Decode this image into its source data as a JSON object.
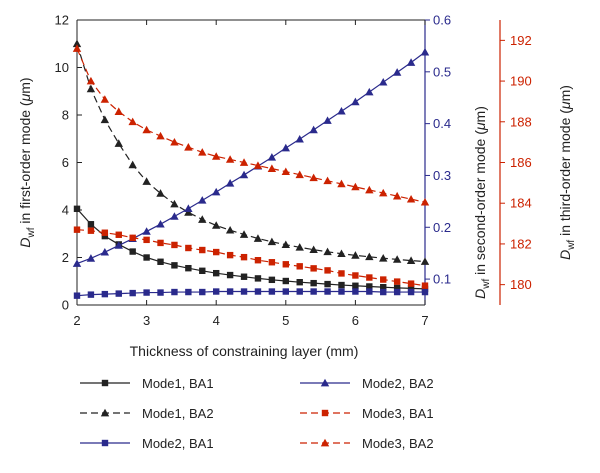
{
  "chart_data": {
    "type": "line",
    "xlabel": "Thickness of constraining layer (mm)",
    "xlim": [
      2,
      7
    ],
    "x_ticks": [
      "2",
      "3",
      "4",
      "5",
      "6",
      "7"
    ],
    "axes": {
      "left": {
        "label_main": "D",
        "label_sub": "wf",
        "label_rest": " in first-order mode (",
        "label_unit_italic": "μ",
        "label_unit_rest": "m)",
        "ylim": [
          0,
          12
        ],
        "ticks": [
          "0",
          "2",
          "4",
          "6",
          "8",
          "10",
          "12"
        ],
        "color": "#222222"
      },
      "right1": {
        "label_main": "D",
        "label_sub": "wf",
        "label_rest": " in second-order mode (",
        "label_unit_italic": "μ",
        "label_unit_rest": "m)",
        "ylim": [
          0.05,
          0.6
        ],
        "ticks": [
          "0.1",
          "0.2",
          "0.3",
          "0.4",
          "0.5",
          "0.6"
        ],
        "color": "#2a2a8c"
      },
      "right2": {
        "label_main": "D",
        "label_sub": "wf",
        "label_rest": " in third-order mode (",
        "label_unit_italic": "μ",
        "label_unit_rest": "m)",
        "ylim": [
          179,
          193
        ],
        "ticks": [
          "180",
          "182",
          "184",
          "186",
          "188",
          "190",
          "192"
        ],
        "color": "#cc2200"
      }
    },
    "x": [
      2.0,
      2.2,
      2.4,
      2.6,
      2.8,
      3.0,
      3.2,
      3.4,
      3.6,
      3.8,
      4.0,
      4.2,
      4.4,
      4.6,
      4.8,
      5.0,
      5.2,
      5.4,
      5.6,
      5.8,
      6.0,
      6.2,
      6.4,
      6.6,
      6.8,
      7.0
    ],
    "series": [
      {
        "name": "Mode1, BA1",
        "axis": "left",
        "marker": "square",
        "dash": false,
        "color": "#222222",
        "values": [
          4.05,
          3.4,
          2.9,
          2.55,
          2.25,
          2.0,
          1.82,
          1.67,
          1.55,
          1.44,
          1.34,
          1.26,
          1.19,
          1.12,
          1.06,
          1.01,
          0.96,
          0.92,
          0.88,
          0.84,
          0.81,
          0.78,
          0.75,
          0.72,
          0.7,
          0.68
        ]
      },
      {
        "name": "Mode1, BA2",
        "axis": "left",
        "marker": "triangle",
        "dash": true,
        "color": "#222222",
        "values": [
          11.0,
          9.1,
          7.8,
          6.8,
          5.9,
          5.2,
          4.7,
          4.25,
          3.9,
          3.6,
          3.35,
          3.15,
          2.97,
          2.8,
          2.66,
          2.54,
          2.43,
          2.33,
          2.24,
          2.16,
          2.09,
          2.03,
          1.97,
          1.92,
          1.87,
          1.83
        ]
      },
      {
        "name": "Mode2, BA1",
        "axis": "right1",
        "marker": "square",
        "dash": false,
        "color": "#2a2a8c",
        "values": [
          0.068,
          0.07,
          0.071,
          0.072,
          0.073,
          0.074,
          0.074,
          0.075,
          0.075,
          0.075,
          0.076,
          0.076,
          0.076,
          0.076,
          0.076,
          0.076,
          0.076,
          0.076,
          0.076,
          0.076,
          0.076,
          0.076,
          0.075,
          0.075,
          0.075,
          0.075
        ]
      },
      {
        "name": "Mode2, BA2",
        "axis": "right1",
        "marker": "triangle",
        "dash": false,
        "color": "#2a2a8c",
        "values": [
          0.13,
          0.14,
          0.152,
          0.165,
          0.178,
          0.192,
          0.206,
          0.221,
          0.236,
          0.252,
          0.268,
          0.285,
          0.301,
          0.318,
          0.335,
          0.353,
          0.37,
          0.388,
          0.406,
          0.424,
          0.442,
          0.461,
          0.48,
          0.499,
          0.518,
          0.538
        ]
      },
      {
        "name": "Mode3, BA1",
        "axis": "right2",
        "marker": "square",
        "dash": true,
        "color": "#cc2200",
        "values": [
          182.7,
          182.65,
          182.55,
          182.45,
          182.3,
          182.2,
          182.05,
          181.95,
          181.8,
          181.7,
          181.6,
          181.45,
          181.35,
          181.2,
          181.1,
          181.0,
          180.9,
          180.8,
          180.7,
          180.55,
          180.45,
          180.35,
          180.25,
          180.15,
          180.05,
          179.95
        ]
      },
      {
        "name": "Mode3, BA2",
        "axis": "right2",
        "marker": "triangle",
        "dash": true,
        "color": "#cc2200",
        "values": [
          191.6,
          190.0,
          189.1,
          188.5,
          188.0,
          187.6,
          187.3,
          187.0,
          186.75,
          186.5,
          186.3,
          186.15,
          186.0,
          185.85,
          185.7,
          185.55,
          185.4,
          185.25,
          185.1,
          184.95,
          184.8,
          184.65,
          184.5,
          184.35,
          184.2,
          184.05
        ]
      }
    ],
    "legend": {
      "placement": "bottom",
      "columns": 2,
      "order": [
        "Mode1, BA1",
        "Mode1, BA2",
        "Mode2, BA1",
        "Mode2, BA2",
        "Mode3, BA1",
        "Mode3, BA2"
      ]
    },
    "grid": false
  }
}
